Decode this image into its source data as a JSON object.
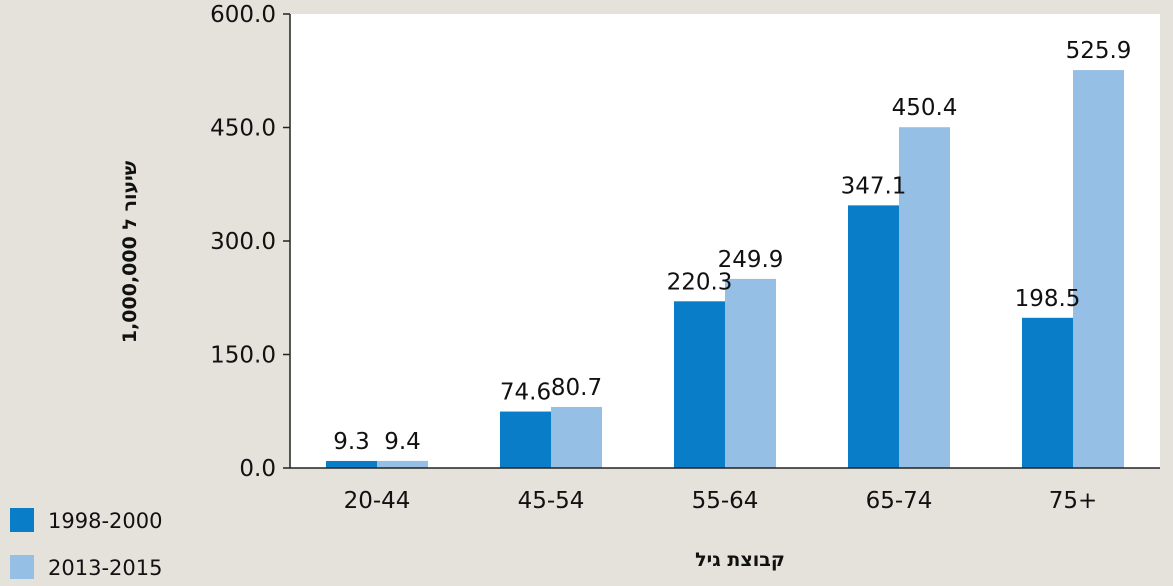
{
  "chart_data": {
    "type": "bar",
    "categories": [
      "20-44",
      "45-54",
      "55-64",
      "65-74",
      "75+"
    ],
    "series": [
      {
        "name": "1998-2000",
        "color": "#0a7dc8",
        "values": [
          9.3,
          74.6,
          220.3,
          347.1,
          198.5
        ],
        "labels": [
          "9.3",
          "74.6",
          "220.3",
          "347.1",
          "198.5"
        ]
      },
      {
        "name": "2013-2015",
        "color": "#95bfe5",
        "values": [
          9.4,
          80.7,
          249.9,
          450.4,
          525.9
        ],
        "labels": [
          "9.4",
          "80.7",
          "249.9",
          "450.4",
          "525.9"
        ]
      }
    ],
    "xlabel": "קבוצת גיל",
    "ylabel": "שיעור ל 1,000,000",
    "ylim": [
      0,
      600
    ],
    "yticks": [
      0,
      150,
      300,
      450,
      600
    ],
    "ytick_labels": [
      "0.0",
      "150.0",
      "300.0",
      "450.0",
      "600.0"
    ],
    "grid": false,
    "legend_position": "bottom-left",
    "plot_background": "#ffffff"
  }
}
